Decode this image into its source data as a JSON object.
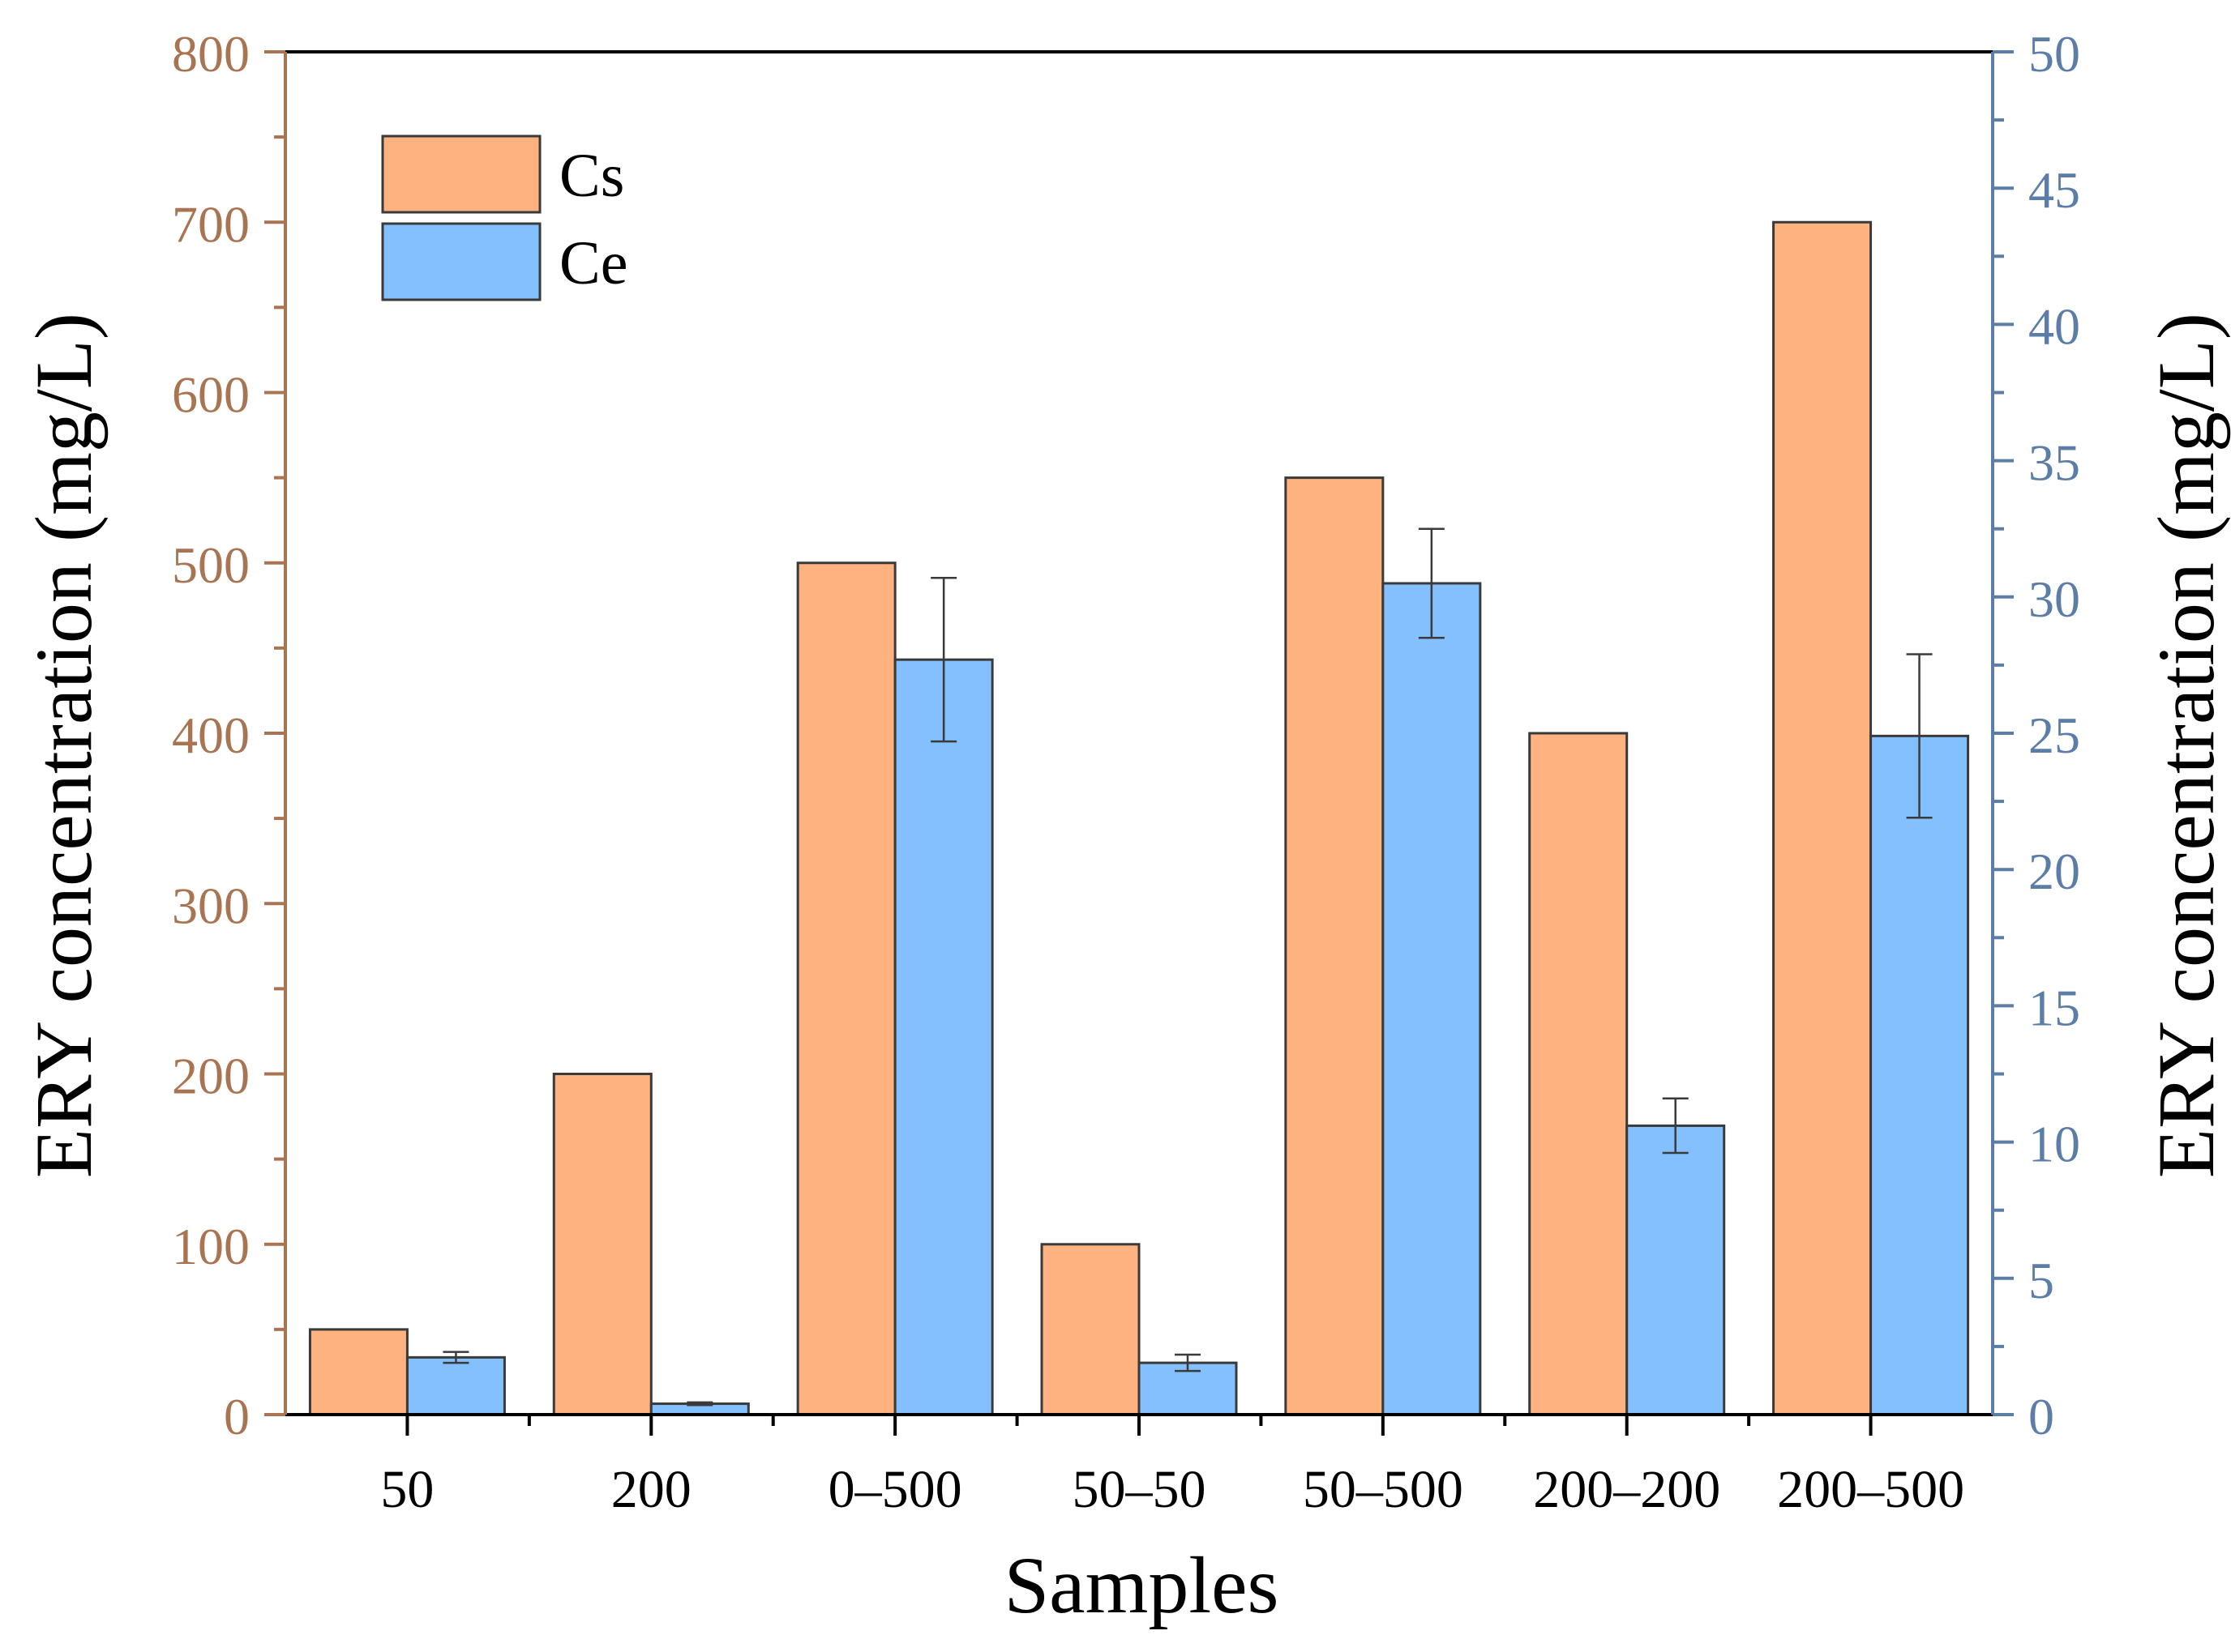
{
  "chart_data": {
    "type": "bar",
    "categories": [
      "50",
      "200",
      "0–500",
      "50–50",
      "50–500",
      "200–200",
      "200–500"
    ],
    "series": [
      {
        "name": "Cs",
        "axis": "left",
        "values": [
          50,
          200,
          500,
          100,
          550,
          400,
          700
        ],
        "errors": [
          null,
          null,
          null,
          null,
          null,
          null,
          null
        ]
      },
      {
        "name": "Ce",
        "axis": "right",
        "values": [
          2.1,
          0.4,
          27.7,
          1.9,
          30.5,
          10.6,
          24.9
        ],
        "errors": [
          0.2,
          0.05,
          3.0,
          0.3,
          2.0,
          1.0,
          3.0
        ]
      }
    ],
    "xlabel": "Samples",
    "ylabel_left": "ERY concentration (mg/L)",
    "ylabel_right": "ERY concentration (mg/L)",
    "ylim_left": [
      0,
      800
    ],
    "ylim_right": [
      0,
      50
    ],
    "yticks_left": [
      "0",
      "100",
      "200",
      "300",
      "400",
      "500",
      "600",
      "700",
      "800"
    ],
    "yticks_right": [
      "0",
      "5",
      "10",
      "15",
      "20",
      "25",
      "30",
      "35",
      "40",
      "45",
      "50"
    ],
    "legend_position": "top-left",
    "grid": false,
    "colors": {
      "cs_fill": "#FDB27F",
      "ce_fill": "#84BFFE",
      "bar_stroke": "#3a3a3a",
      "left_axis": "#A87452",
      "right_axis": "#5B7DA8",
      "frame": "#000000"
    }
  }
}
